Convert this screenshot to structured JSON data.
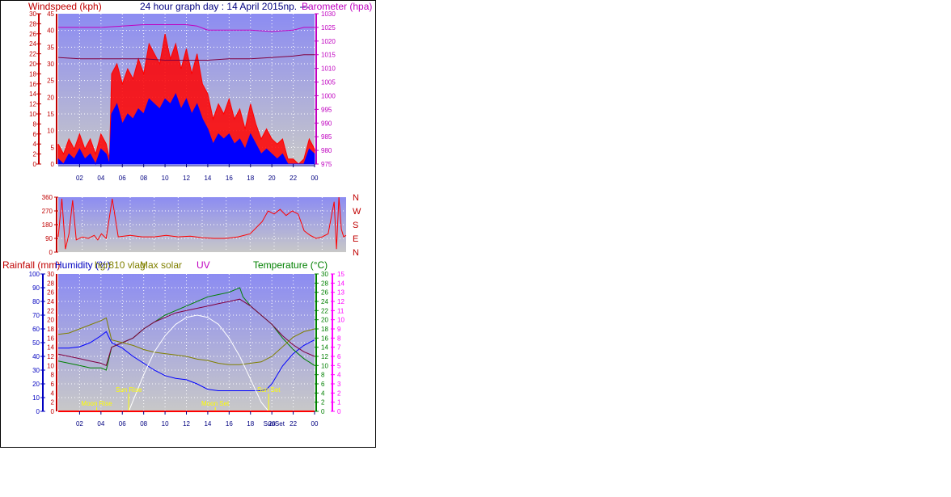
{
  "colors": {
    "background": "#ffffff",
    "plot_top": "#8c8cf2",
    "plot_bottom": "#c8c8c8",
    "wind_avg": "#0000ff",
    "wind_gust": "#ff0000",
    "barometer": "#c000c0",
    "direction": "#ff0000",
    "rain_axis": "#0000c0",
    "humidity": "#800040",
    "dewpoint": "#808000",
    "solar": "#ffffff",
    "temperature": "#008000",
    "uv_axis": "#ff00ff",
    "event_markers": "#ffff00",
    "axis_time": "#000080"
  },
  "chart_data": [
    {
      "id": "wind_pressure",
      "type": "line",
      "title": "24 hour graph day : 14 April 2015np. ---",
      "ylabel_left": "Windspeed (kph)",
      "ylabel_right": "Barometer (hpa)",
      "left_scale_outer_ticks": [
        0,
        2,
        4,
        6,
        8,
        10,
        12,
        14,
        16,
        18,
        20,
        22,
        24,
        26,
        28,
        30
      ],
      "left_scale_inner_ticks": [
        0,
        5,
        10,
        15,
        20,
        25,
        30,
        35,
        40,
        45
      ],
      "ylim_left": [
        0,
        30
      ],
      "ylim_right": [
        975,
        1030
      ],
      "right_ticks": [
        975,
        980,
        985,
        990,
        995,
        1000,
        1005,
        1010,
        1015,
        1020,
        1025,
        1030
      ],
      "x_ticks": [
        "02",
        "04",
        "06",
        "08",
        "10",
        "12",
        "14",
        "16",
        "18",
        "20",
        "22",
        "00"
      ],
      "x_range_hours": [
        0,
        24
      ],
      "grid": true,
      "series": [
        {
          "name": "Windspeed",
          "color": "#0000ff",
          "x": [
            0,
            0.5,
            1,
            1.5,
            2,
            2.5,
            3,
            3.5,
            4,
            4.5,
            4.8,
            5,
            5.5,
            6,
            6.5,
            7,
            7.5,
            8,
            8.5,
            9,
            9.5,
            10,
            10.5,
            11,
            11.5,
            12,
            12.5,
            13,
            13.5,
            14,
            14.5,
            15,
            15.5,
            16,
            16.5,
            17,
            17.5,
            18,
            18.5,
            19,
            19.5,
            20,
            20.5,
            21,
            21.5,
            22,
            22.5,
            23,
            23.5,
            24
          ],
          "y": [
            1,
            0,
            2,
            1,
            3,
            1,
            2,
            0,
            3,
            2,
            0,
            10,
            12,
            8,
            10,
            9,
            11,
            10,
            13,
            12,
            11,
            13,
            12,
            14,
            11,
            13,
            10,
            12,
            9,
            7,
            4,
            6,
            5,
            6,
            4,
            5,
            3,
            6,
            4,
            2,
            3,
            2,
            1,
            2,
            0,
            0,
            0,
            0,
            3,
            2
          ]
        },
        {
          "name": "Gust",
          "color": "#ff0000",
          "x": [
            0,
            0.5,
            1,
            1.5,
            2,
            2.5,
            3,
            3.5,
            4,
            4.5,
            4.8,
            5,
            5.5,
            6,
            6.5,
            7,
            7.5,
            8,
            8.5,
            9,
            9.5,
            10,
            10.5,
            11,
            11.5,
            12,
            12.5,
            13,
            13.5,
            14,
            14.5,
            15,
            15.5,
            16,
            16.5,
            17,
            17.5,
            18,
            18.5,
            19,
            19.5,
            20,
            20.5,
            21,
            21.5,
            22,
            22.5,
            23,
            23.5,
            24
          ],
          "y": [
            4,
            2,
            5,
            3,
            6,
            3,
            5,
            2,
            6,
            4,
            1,
            18,
            20,
            16,
            19,
            17,
            21,
            18,
            24,
            22,
            20,
            26,
            21,
            24,
            19,
            23,
            18,
            22,
            16,
            14,
            9,
            12,
            10,
            13,
            9,
            11,
            7,
            12,
            8,
            5,
            7,
            5,
            4,
            5,
            1,
            1,
            0,
            1,
            5,
            3
          ]
        },
        {
          "name": "Barometer",
          "color": "#c000c0",
          "axis": "right",
          "x": [
            0,
            2,
            4,
            6,
            8,
            10,
            12,
            13,
            14,
            16,
            18,
            20,
            22,
            23,
            24
          ],
          "y": [
            1025,
            1025,
            1025,
            1025.5,
            1026,
            1026,
            1026,
            1025.5,
            1024,
            1024,
            1024,
            1023.5,
            1024,
            1025,
            1025
          ]
        },
        {
          "name": "Barometer (trend)",
          "color": "#800040",
          "axis": "right",
          "x": [
            0,
            2,
            4,
            6,
            8,
            10,
            12,
            14,
            16,
            18,
            20,
            22,
            23,
            24
          ],
          "y": [
            1014,
            1013.5,
            1013.5,
            1013.5,
            1013.5,
            1013,
            1013,
            1013,
            1013.5,
            1013.5,
            1014,
            1014.5,
            1015,
            1015
          ]
        }
      ]
    },
    {
      "id": "wind_direction",
      "type": "line",
      "ylim": [
        0,
        360
      ],
      "y_ticks": [
        0,
        90,
        180,
        270,
        360
      ],
      "compass_labels": [
        "N",
        "W",
        "S",
        "E",
        "N"
      ],
      "x_range_hours": [
        0,
        24
      ],
      "grid": true,
      "series": [
        {
          "name": "Direction",
          "color": "#ff0000",
          "x": [
            0,
            0.3,
            0.6,
            0.9,
            1.2,
            1.5,
            2,
            2.5,
            3,
            3.3,
            3.6,
            4,
            4.5,
            5,
            6,
            7,
            8,
            9,
            10,
            11,
            12,
            13,
            14,
            15,
            16,
            16.5,
            17,
            17.5,
            18,
            18.5,
            19,
            19.5,
            20,
            20.5,
            21,
            21.5,
            22,
            22.5,
            23,
            23.2,
            23.4,
            23.6,
            23.8,
            24
          ],
          "y": [
            100,
            350,
            20,
            120,
            340,
            80,
            100,
            90,
            110,
            80,
            120,
            90,
            350,
            100,
            110,
            100,
            100,
            110,
            100,
            105,
            95,
            90,
            90,
            100,
            120,
            160,
            200,
            270,
            250,
            280,
            240,
            270,
            250,
            140,
            110,
            90,
            100,
            120,
            330,
            20,
            360,
            150,
            100,
            110
          ]
        }
      ]
    },
    {
      "id": "rain_temp",
      "type": "line",
      "legend": [
        "Rainfall (mm)",
        "Humidity (%)",
        "hgr810 vlag",
        "Max solar",
        "UV",
        "Temperature (°C)"
      ],
      "rain_ticks": [
        0,
        10,
        20,
        30,
        40,
        50,
        60,
        70,
        80,
        90,
        100
      ],
      "temp_ticks_left": [
        0,
        2,
        4,
        6,
        8,
        10,
        12,
        14,
        16,
        18,
        20,
        22,
        24,
        26,
        28,
        30
      ],
      "temp_ticks_right": [
        0,
        2,
        4,
        6,
        8,
        10,
        12,
        14,
        16,
        18,
        20,
        22,
        24,
        26,
        28,
        30
      ],
      "uv_ticks": [
        0,
        1,
        2,
        3,
        4,
        5,
        6,
        7,
        8,
        9,
        10,
        11,
        12,
        13,
        14,
        15
      ],
      "ylim_temp": [
        0,
        30
      ],
      "ylim_humidity": [
        0,
        100
      ],
      "x_ticks": [
        "02",
        "04",
        "06",
        "08",
        "10",
        "12",
        "14",
        "16",
        "18",
        "20",
        "22",
        "00"
      ],
      "x_range_hours": [
        0,
        24
      ],
      "grid": true,
      "events": [
        {
          "label": "Sun Rise",
          "hour": 6.6,
          "level": 1
        },
        {
          "label": "Moon Rise",
          "hour": 3.6,
          "level": 0
        },
        {
          "label": "Moon Set",
          "hour": 14.7,
          "level": 0
        },
        {
          "label": "Sun Set",
          "hour": 19.7,
          "level": 1
        }
      ],
      "x_tick_extra_label": "SunSet",
      "series": [
        {
          "name": "Humidity",
          "color": "#0000ff",
          "axis": "humidity",
          "x": [
            0,
            1,
            2,
            3,
            4,
            4.5,
            5,
            6,
            7,
            8,
            9,
            10,
            11,
            12,
            13,
            14,
            15,
            16,
            17,
            18,
            19,
            19.5,
            20,
            21,
            22,
            23,
            24
          ],
          "y": [
            46,
            46,
            47,
            50,
            55,
            58,
            50,
            46,
            40,
            35,
            30,
            26,
            24,
            23,
            20,
            16,
            15,
            15,
            15,
            15,
            15,
            16,
            20,
            33,
            42,
            48,
            52
          ]
        },
        {
          "name": "Temperature",
          "color": "#008000",
          "axis": "temp",
          "x": [
            0,
            1,
            2,
            3,
            4,
            4.5,
            5,
            6,
            7,
            8,
            9,
            10,
            11,
            12,
            13,
            14,
            15,
            16,
            17,
            17.3,
            18,
            19,
            20,
            21,
            22,
            23,
            24
          ],
          "y": [
            11,
            10.5,
            10,
            9.5,
            9.5,
            9,
            14,
            15,
            16,
            18,
            19.5,
            21,
            22,
            23,
            24,
            25,
            25.5,
            26,
            27,
            25,
            23,
            21,
            19,
            16,
            13.5,
            11.5,
            10
          ]
        },
        {
          "name": "Dewpoint",
          "color": "#800040",
          "axis": "temp",
          "x": [
            0,
            1,
            2,
            3,
            4,
            4.5,
            5,
            6,
            7,
            8,
            9,
            10,
            11,
            12,
            13,
            14,
            15,
            16,
            17,
            18,
            19,
            20,
            21,
            22,
            23,
            24
          ],
          "y": [
            12.5,
            12,
            11.5,
            11,
            10.5,
            10,
            14,
            15,
            16,
            18,
            19.5,
            20.5,
            21.5,
            22,
            22.5,
            23,
            23.5,
            24,
            24.5,
            23,
            21,
            19,
            16.5,
            14.5,
            13,
            12
          ]
        },
        {
          "name": "hgr810 vlag",
          "color": "#808000",
          "axis": "humidity",
          "x": [
            0,
            1,
            2,
            3,
            4,
            4.5,
            5,
            6,
            7,
            8,
            9,
            10,
            11,
            12,
            13,
            14,
            15,
            16,
            17,
            18,
            19,
            20,
            21,
            22,
            23,
            24
          ],
          "y": [
            56,
            57,
            60,
            63,
            66,
            68,
            52,
            50,
            48,
            45,
            43,
            42,
            41,
            40,
            38,
            37,
            35,
            34,
            34,
            35,
            36,
            40,
            47,
            54,
            58,
            60
          ]
        },
        {
          "name": "Max solar",
          "color": "#ffffff",
          "axis": "temp",
          "x": [
            6.6,
            8,
            9,
            10,
            11,
            12,
            13,
            14,
            15,
            16,
            17,
            18,
            19,
            19.7
          ],
          "y": [
            0,
            8,
            13,
            16.5,
            19,
            20.5,
            21,
            20.5,
            19,
            16,
            12,
            7,
            2,
            0
          ]
        }
      ]
    }
  ]
}
